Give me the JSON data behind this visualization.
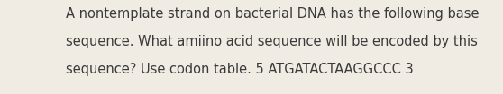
{
  "text_lines": [
    "A nontemplate strand on bacterial DNA has the following base",
    "sequence. What amiino acid sequence will be encoded by this",
    "sequence? Use codon table. 5 ATGATACTAAGGCCC 3"
  ],
  "background_color": "#f0ece3",
  "text_color": "#3a3a3a",
  "font_size": 10.5,
  "fig_width": 5.58,
  "fig_height": 1.05,
  "dpi": 100
}
